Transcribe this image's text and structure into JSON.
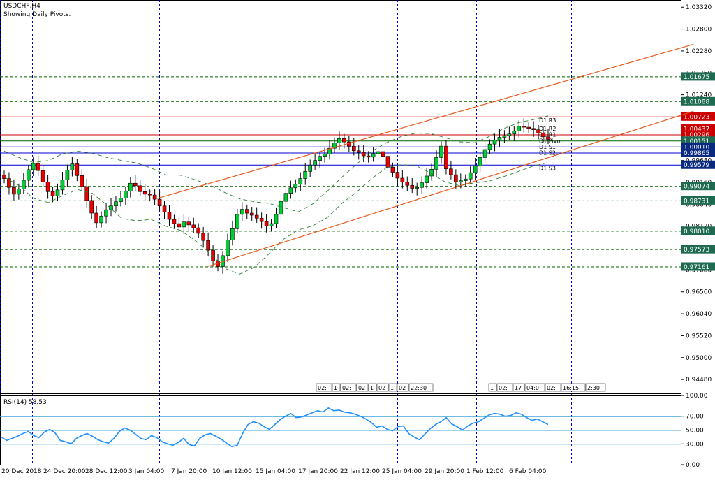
{
  "chart_data": [
    {
      "type": "candlestick",
      "title": "USDCHF,H4",
      "subtitle": "Showing Daily Pivots.",
      "ylim": [
        0.9415,
        1.0349
      ],
      "y_ticks": [
        "1.03320",
        "1.02800",
        "1.02280",
        "1.01760",
        "1.01240",
        "1.00720",
        "1.00200",
        "0.99680",
        "0.99160",
        "0.98640",
        "0.98120",
        "0.97600",
        "0.97080",
        "0.96560",
        "0.96040",
        "0.95520",
        "0.95000",
        "0.94480"
      ],
      "x_ticks": [
        "20 Dec 2018",
        "24 Dec 20:00",
        "28 Dec 12:00",
        "3 Jan 04:00",
        "7 Jan 20:00",
        "10 Jan 12:00",
        "15 Jan 04:00",
        "17 Jan 20:00",
        "22 Jan 12:00",
        "25 Jan 04:00",
        "29 Jan 20:00",
        "1 Feb 12:00",
        "6 Feb 04:00"
      ],
      "pivots": [
        {
          "name": "D1 R3",
          "value": 1.00723,
          "label": "1.00723",
          "color": "#cc0000",
          "highlight": true
        },
        {
          "name": "D1 R2",
          "value": 1.00437,
          "label": "1.00437",
          "color": "#cc0000",
          "highlight": false
        },
        {
          "name": "D1 R1",
          "value": 1.00296,
          "label": "1.00296",
          "color": "#cc0000",
          "highlight": false
        },
        {
          "name": "D1 Pivot",
          "value": 1.00151,
          "label": "1.00151",
          "color": "#006400",
          "highlight": false
        },
        {
          "name": "D1 S1",
          "value": 1.0001,
          "label": "1.00010",
          "color": "#0000cc",
          "highlight": false
        },
        {
          "name": "D1 S2",
          "value": 0.99865,
          "label": "0.99865",
          "color": "#0000cc",
          "highlight": false
        },
        {
          "name": "D1 S3",
          "value": 0.99579,
          "label": "0.99579",
          "color": "#0000cc",
          "highlight": false
        }
      ],
      "levels": [
        {
          "value": 1.01675,
          "label": "1.01675"
        },
        {
          "value": 1.01088,
          "label": "1.01088"
        },
        {
          "value": 0.99074,
          "label": "0.99074"
        },
        {
          "value": 0.98731,
          "label": "0.98731"
        },
        {
          "value": 0.9801,
          "label": "0.98010"
        },
        {
          "value": 0.97573,
          "label": "0.97573"
        },
        {
          "value": 0.97161,
          "label": "0.97161"
        }
      ],
      "close_series": [
        0.9925,
        0.9904,
        0.9888,
        0.99,
        0.9921,
        0.9946,
        0.9961,
        0.9944,
        0.9917,
        0.9894,
        0.9884,
        0.9898,
        0.9922,
        0.9945,
        0.996,
        0.9932,
        0.9906,
        0.9873,
        0.9843,
        0.982,
        0.9836,
        0.9851,
        0.986,
        0.987,
        0.9879,
        0.9895,
        0.9914,
        0.9908,
        0.9894,
        0.9888,
        0.9886,
        0.9876,
        0.986,
        0.9845,
        0.9828,
        0.9818,
        0.981,
        0.9822,
        0.9815,
        0.9808,
        0.9795,
        0.9778,
        0.9755,
        0.9729,
        0.9716,
        0.9742,
        0.9779,
        0.9806,
        0.984,
        0.9852,
        0.9843,
        0.9838,
        0.9831,
        0.9823,
        0.9812,
        0.9818,
        0.984,
        0.9871,
        0.989,
        0.9903,
        0.9912,
        0.9925,
        0.9942,
        0.9957,
        0.9968,
        0.9978,
        0.9983,
        0.9997,
        1.001,
        1.002,
        1.0012,
        1.0002,
        0.9991,
        0.9987,
        0.9979,
        0.9976,
        0.9984,
        0.9989,
        0.9978,
        0.9952,
        0.994,
        0.9926,
        0.9917,
        0.9909,
        0.9902,
        0.9904,
        0.9915,
        0.9931,
        0.9947,
        0.9975,
        1.0002,
        0.9948,
        0.9934,
        0.9917,
        0.992,
        0.9924,
        0.9939,
        0.9955,
        0.9975,
        0.9994,
        1.0007,
        1.0016,
        1.0023,
        1.0027,
        1.0031,
        1.0038,
        1.0049,
        1.0047,
        1.0044,
        1.0041,
        1.0033,
        1.0024,
        1.0018
      ],
      "bands_upper": [
        0.999,
        0.9975,
        0.9963,
        0.9968,
        0.9984,
        0.999,
        0.9985,
        0.9975,
        0.9968,
        0.9962,
        0.995,
        0.9934,
        0.9933,
        0.9922,
        0.991,
        0.9892,
        0.9877,
        0.987,
        0.9866,
        0.9856,
        0.9846,
        0.9865,
        0.9896,
        0.9929,
        0.996,
        0.999,
        1.001,
        1.0025,
        1.0033,
        1.0032,
        1.0022,
        1.0012,
        1.001,
        1.0025,
        1.0044,
        1.0058,
        1.0065,
        1.0074
      ],
      "bands_lower": [
        0.9929,
        0.9908,
        0.9878,
        0.9868,
        0.9885,
        0.9899,
        0.989,
        0.9862,
        0.983,
        0.9825,
        0.9828,
        0.9812,
        0.9802,
        0.9778,
        0.9748,
        0.9712,
        0.9698,
        0.9714,
        0.9746,
        0.9781,
        0.9803,
        0.9813,
        0.9833,
        0.9867,
        0.9894,
        0.9925,
        0.9951,
        0.9958,
        0.9956,
        0.9938,
        0.9917,
        0.9908,
        0.9915,
        0.9919,
        0.993,
        0.9942,
        0.9955,
        0.9963
      ],
      "channel_lines": [
        {
          "x": [
            0.22,
            0.97
          ],
          "y": [
            0.9878,
            1.0244
          ]
        },
        {
          "x": [
            0.29,
            0.97
          ],
          "y": [
            0.9716,
            1.0085
          ]
        }
      ],
      "time_labels_left": [
        "02:",
        "1",
        "02:",
        "02",
        "1",
        "02",
        "1",
        "02",
        "22:30"
      ],
      "time_labels_right": [
        "1",
        "02:",
        "17",
        "04:0",
        "02:",
        "16:15",
        "2:30"
      ]
    },
    {
      "type": "line",
      "title": "RSI(14) 58.53",
      "ylim": [
        0,
        100
      ],
      "y_ticks": [
        "100.00",
        "70.00",
        "50.00",
        "30.00",
        "0.00"
      ],
      "levels": [
        70,
        50,
        30
      ],
      "values": [
        40,
        35,
        38,
        41,
        45,
        48,
        42,
        39,
        47,
        51,
        46,
        35,
        33,
        30,
        38,
        42,
        45,
        41,
        36,
        33,
        31,
        38,
        48,
        53,
        50,
        44,
        38,
        36,
        42,
        39,
        33,
        30,
        28,
        32,
        38,
        29,
        27,
        38,
        43,
        45,
        41,
        37,
        31,
        26,
        28,
        45,
        58,
        62,
        60,
        55,
        51,
        58,
        65,
        70,
        74,
        68,
        69,
        72,
        75,
        78,
        76,
        82,
        78,
        79,
        76,
        75,
        73,
        70,
        66,
        61,
        54,
        56,
        51,
        49,
        55,
        56,
        45,
        40,
        36,
        44,
        52,
        58,
        62,
        68,
        59,
        55,
        50,
        56,
        60,
        62,
        67,
        72,
        74,
        73,
        70,
        71,
        75,
        73,
        68,
        64,
        66,
        62,
        58
      ]
    }
  ]
}
